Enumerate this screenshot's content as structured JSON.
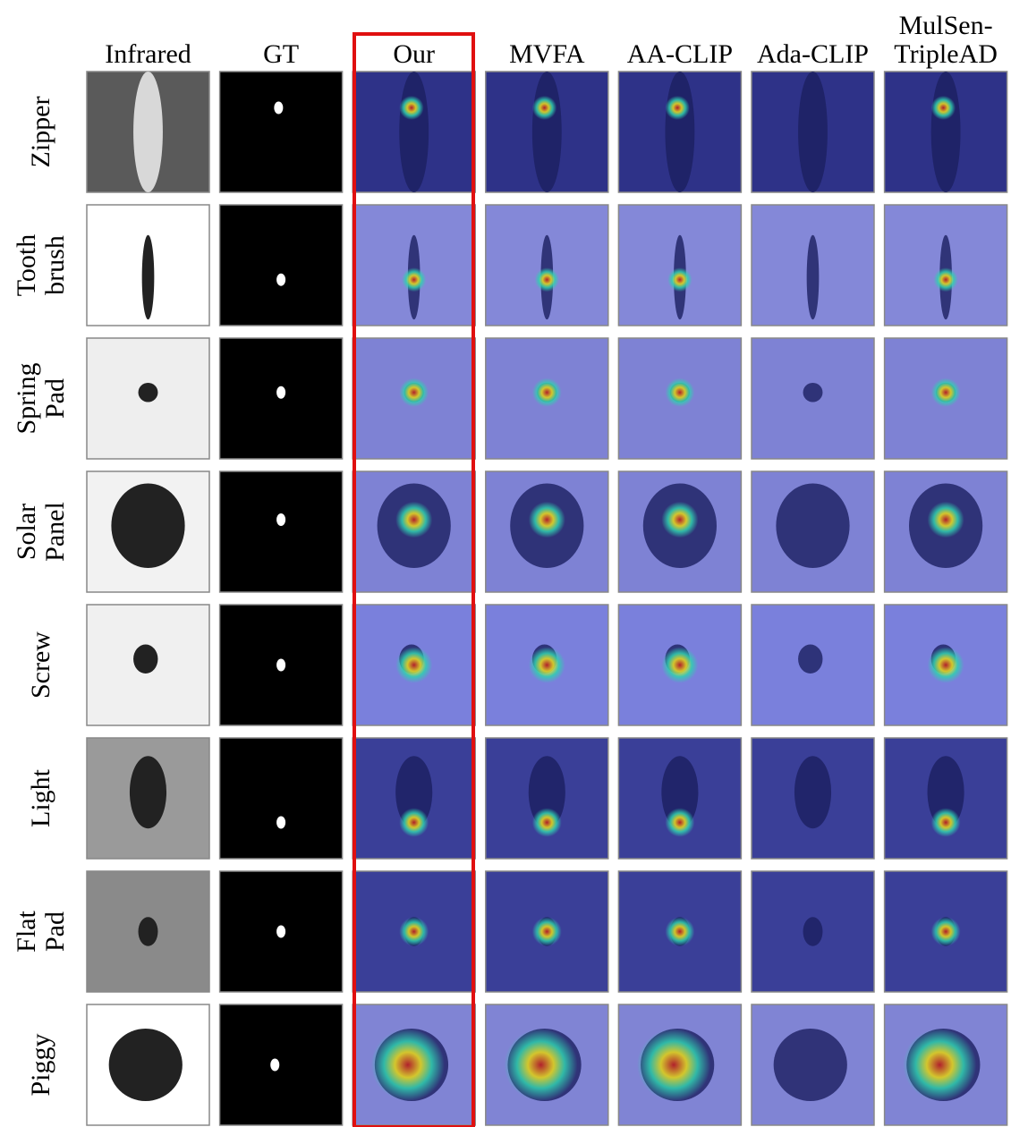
{
  "columns": [
    [
      "Infrared"
    ],
    [
      "GT"
    ],
    [
      "Our"
    ],
    [
      "MVFA"
    ],
    [
      "AA-CLIP"
    ],
    [
      "Ada-CLIP"
    ],
    [
      "MulSen-",
      "TripleAD"
    ]
  ],
  "rows": [
    [
      "Zipper"
    ],
    [
      "Tooth",
      "brush"
    ],
    [
      "Spring",
      "Pad"
    ],
    [
      "Solar",
      "Panel"
    ],
    [
      "Screw"
    ],
    [
      "Light"
    ],
    [
      "Flat",
      "Pad"
    ],
    [
      "Piggy"
    ]
  ]
}
